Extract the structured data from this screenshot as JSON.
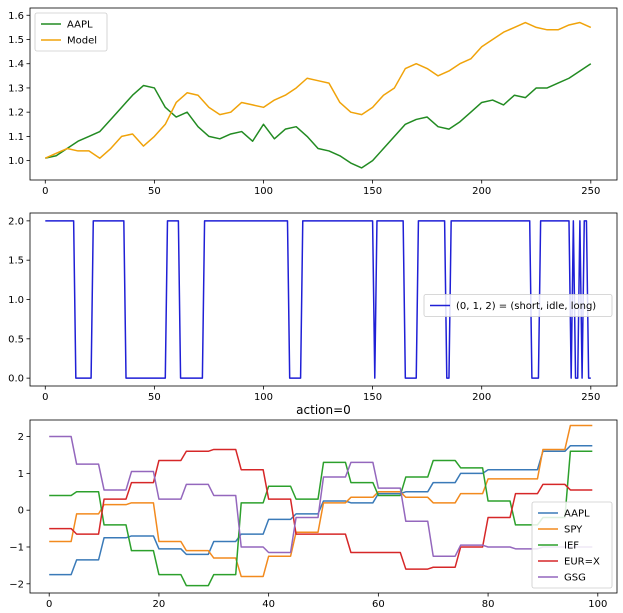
{
  "chart_data": [
    {
      "type": "line",
      "title": "",
      "xlim": [
        -7,
        262
      ],
      "ylim": [
        0.92,
        1.63
      ],
      "x_ticks": [
        0,
        50,
        100,
        150,
        200,
        250
      ],
      "x_tick_labels": [
        "0",
        "50",
        "100",
        "150",
        "200",
        "250"
      ],
      "y_ticks": [
        1.0,
        1.1,
        1.2,
        1.3,
        1.4,
        1.5,
        1.6
      ],
      "y_tick_labels": [
        "1.0",
        "1.1",
        "1.2",
        "1.3",
        "1.4",
        "1.5",
        "1.6"
      ],
      "legend": "top-left",
      "series": [
        {
          "name": "AAPL",
          "color": "#228b22",
          "x": [
            0,
            5,
            10,
            15,
            20,
            25,
            30,
            35,
            40,
            45,
            50,
            55,
            60,
            65,
            70,
            75,
            80,
            85,
            90,
            95,
            100,
            105,
            110,
            115,
            120,
            125,
            130,
            135,
            140,
            145,
            150,
            155,
            160,
            165,
            170,
            175,
            180,
            185,
            190,
            195,
            200,
            205,
            210,
            215,
            220,
            225,
            230,
            235,
            240,
            245,
            250
          ],
          "y": [
            1.01,
            1.02,
            1.05,
            1.08,
            1.1,
            1.12,
            1.17,
            1.22,
            1.27,
            1.31,
            1.3,
            1.22,
            1.18,
            1.2,
            1.14,
            1.1,
            1.09,
            1.11,
            1.12,
            1.08,
            1.15,
            1.09,
            1.13,
            1.14,
            1.1,
            1.05,
            1.04,
            1.02,
            0.99,
            0.97,
            1.0,
            1.05,
            1.1,
            1.15,
            1.17,
            1.18,
            1.14,
            1.13,
            1.16,
            1.2,
            1.24,
            1.25,
            1.23,
            1.27,
            1.26,
            1.3,
            1.3,
            1.32,
            1.34,
            1.37,
            1.4
          ]
        },
        {
          "name": "Model",
          "color": "#f0a30a",
          "x": [
            0,
            5,
            10,
            15,
            20,
            25,
            30,
            35,
            40,
            45,
            50,
            55,
            60,
            65,
            70,
            75,
            80,
            85,
            90,
            95,
            100,
            105,
            110,
            115,
            120,
            125,
            130,
            135,
            140,
            145,
            150,
            155,
            160,
            165,
            170,
            175,
            180,
            185,
            190,
            195,
            200,
            205,
            210,
            215,
            220,
            225,
            230,
            235,
            240,
            245,
            250
          ],
          "y": [
            1.01,
            1.03,
            1.05,
            1.04,
            1.04,
            1.01,
            1.05,
            1.1,
            1.11,
            1.06,
            1.1,
            1.15,
            1.24,
            1.28,
            1.27,
            1.22,
            1.19,
            1.2,
            1.24,
            1.23,
            1.22,
            1.25,
            1.27,
            1.3,
            1.34,
            1.33,
            1.32,
            1.24,
            1.2,
            1.19,
            1.22,
            1.27,
            1.3,
            1.38,
            1.4,
            1.38,
            1.35,
            1.37,
            1.4,
            1.42,
            1.47,
            1.5,
            1.53,
            1.55,
            1.57,
            1.55,
            1.54,
            1.54,
            1.56,
            1.57,
            1.55
          ]
        }
      ]
    },
    {
      "type": "line",
      "title": "",
      "xlim": [
        -7,
        262
      ],
      "ylim": [
        -0.1,
        2.1
      ],
      "x_ticks": [
        0,
        50,
        100,
        150,
        200,
        250
      ],
      "x_tick_labels": [
        "0",
        "50",
        "100",
        "150",
        "200",
        "250"
      ],
      "y_ticks": [
        0.0,
        0.5,
        1.0,
        1.5,
        2.0
      ],
      "y_tick_labels": [
        "0.0",
        "0.5",
        "1.0",
        "1.5",
        "2.0"
      ],
      "legend": "center-right",
      "series": [
        {
          "name": "(0, 1, 2) = (short, idle, long)",
          "color": "#1f1fd6",
          "x": [
            0,
            13,
            14,
            21,
            22,
            36,
            37,
            55,
            56,
            61,
            62,
            72,
            73,
            111,
            112,
            117,
            118,
            150,
            151,
            152,
            164,
            165,
            170,
            171,
            183,
            184,
            185,
            186,
            222,
            223,
            226,
            227,
            240,
            241,
            242,
            243,
            244,
            245,
            246,
            247,
            248,
            249,
            250
          ],
          "y": [
            2,
            2,
            0,
            0,
            2,
            2,
            0,
            0,
            2,
            2,
            0,
            0,
            2,
            2,
            0,
            0,
            2,
            2,
            0,
            2,
            2,
            0,
            0,
            2,
            2,
            0,
            0,
            2,
            2,
            0,
            0,
            2,
            2,
            0,
            2,
            0,
            0,
            2,
            0,
            2,
            2,
            0,
            0
          ]
        }
      ]
    },
    {
      "type": "line",
      "title": "action=0",
      "xlim": [
        -3.5,
        103.5
      ],
      "ylim": [
        -2.25,
        2.45
      ],
      "x_ticks": [
        0,
        20,
        40,
        60,
        80,
        100
      ],
      "x_tick_labels": [
        "0",
        "20",
        "40",
        "60",
        "80",
        "100"
      ],
      "y_ticks": [
        -2,
        -1,
        0,
        1,
        2
      ],
      "y_tick_labels": [
        "−2",
        "−1",
        "0",
        "1",
        "2"
      ],
      "legend": "lower-right",
      "series": [
        {
          "name": "AAPL",
          "color": "#3a7ab8",
          "x": [
            0,
            4,
            5,
            9,
            10,
            14,
            15,
            19,
            20,
            24,
            25,
            29,
            30,
            34,
            35,
            39,
            40,
            44,
            45,
            49,
            50,
            54,
            55,
            59,
            60,
            64,
            65,
            69,
            70,
            74,
            75,
            79,
            80,
            84,
            85,
            89,
            90,
            94,
            95,
            99
          ],
          "y": [
            -1.75,
            -1.75,
            -1.35,
            -1.35,
            -0.75,
            -0.75,
            -0.7,
            -0.7,
            -1.05,
            -1.05,
            -1.2,
            -1.2,
            -0.85,
            -0.85,
            -0.65,
            -0.65,
            -0.25,
            -0.25,
            -0.1,
            -0.1,
            0.25,
            0.25,
            0.2,
            0.2,
            0.45,
            0.45,
            0.5,
            0.5,
            0.75,
            0.75,
            1.0,
            1.0,
            1.1,
            1.1,
            1.1,
            1.1,
            1.6,
            1.6,
            1.75,
            1.75
          ]
        },
        {
          "name": "SPY",
          "color": "#f28a1e",
          "x": [
            0,
            4,
            5,
            9,
            10,
            14,
            15,
            19,
            20,
            24,
            25,
            29,
            30,
            34,
            35,
            39,
            40,
            44,
            45,
            49,
            50,
            54,
            55,
            59,
            60,
            64,
            65,
            69,
            70,
            74,
            75,
            79,
            80,
            84,
            85,
            89,
            90,
            94,
            95,
            99
          ],
          "y": [
            -0.85,
            -0.85,
            -0.1,
            -0.1,
            0.15,
            0.15,
            0.2,
            0.2,
            -0.85,
            -0.85,
            -1.1,
            -1.1,
            -1.3,
            -1.3,
            -1.8,
            -1.8,
            -1.25,
            -1.25,
            -0.6,
            -0.6,
            0.2,
            0.2,
            0.35,
            0.35,
            0.5,
            0.5,
            0.35,
            0.35,
            0.2,
            0.2,
            0.45,
            0.45,
            0.85,
            0.85,
            0.85,
            0.85,
            1.65,
            1.65,
            2.3,
            2.3
          ]
        },
        {
          "name": "IEF",
          "color": "#2ca02c",
          "x": [
            0,
            4,
            5,
            9,
            10,
            14,
            15,
            19,
            20,
            24,
            25,
            29,
            30,
            34,
            35,
            39,
            40,
            44,
            45,
            49,
            50,
            54,
            55,
            59,
            60,
            64,
            65,
            69,
            70,
            74,
            75,
            79,
            80,
            84,
            85,
            89,
            90,
            94,
            95,
            99
          ],
          "y": [
            0.4,
            0.4,
            0.5,
            0.5,
            -0.4,
            -0.4,
            -1.1,
            -1.1,
            -1.75,
            -1.75,
            -2.05,
            -2.05,
            -1.75,
            -1.75,
            0.2,
            0.2,
            0.65,
            0.65,
            0.3,
            0.3,
            1.3,
            1.3,
            0.75,
            0.75,
            0.4,
            0.4,
            0.9,
            0.9,
            1.35,
            1.35,
            1.15,
            1.15,
            0.25,
            0.25,
            -0.4,
            -0.4,
            -0.2,
            -0.2,
            1.6,
            1.6
          ]
        },
        {
          "name": "EUR=X",
          "color": "#d62728",
          "x": [
            0,
            4,
            5,
            9,
            10,
            14,
            15,
            19,
            20,
            24,
            25,
            29,
            30,
            34,
            35,
            39,
            40,
            44,
            45,
            49,
            50,
            54,
            55,
            59,
            60,
            64,
            65,
            69,
            70,
            74,
            75,
            79,
            80,
            84,
            85,
            89,
            90,
            94,
            95,
            99
          ],
          "y": [
            -0.5,
            -0.5,
            -0.65,
            -0.65,
            0.3,
            0.3,
            0.75,
            0.75,
            1.35,
            1.35,
            1.6,
            1.6,
            1.65,
            1.65,
            1.1,
            1.1,
            0.3,
            0.3,
            -0.65,
            -0.65,
            -0.65,
            -0.65,
            -1.15,
            -1.15,
            -1.15,
            -1.15,
            -1.6,
            -1.6,
            -1.55,
            -1.55,
            -1.0,
            -1.0,
            -0.2,
            -0.2,
            0.45,
            0.45,
            0.7,
            0.7,
            0.55,
            0.55
          ]
        },
        {
          "name": "GSG",
          "color": "#9467bd",
          "x": [
            0,
            4,
            5,
            9,
            10,
            14,
            15,
            19,
            20,
            24,
            25,
            29,
            30,
            34,
            35,
            39,
            40,
            44,
            45,
            49,
            50,
            54,
            55,
            59,
            60,
            64,
            65,
            69,
            70,
            74,
            75,
            79,
            80,
            84,
            85,
            89,
            90,
            94,
            95,
            99
          ],
          "y": [
            2.0,
            2.0,
            1.25,
            1.25,
            0.55,
            0.55,
            1.05,
            1.05,
            0.3,
            0.3,
            0.7,
            0.7,
            0.4,
            0.4,
            -1.0,
            -1.0,
            -1.15,
            -1.15,
            -0.2,
            -0.2,
            0.9,
            0.9,
            1.3,
            1.3,
            0.6,
            0.6,
            -0.3,
            -0.3,
            -1.25,
            -1.25,
            -0.95,
            -0.95,
            -1.0,
            -1.0,
            -1.05,
            -1.05,
            -1.0,
            -1.0,
            -1.0,
            -1.0
          ]
        }
      ]
    }
  ]
}
